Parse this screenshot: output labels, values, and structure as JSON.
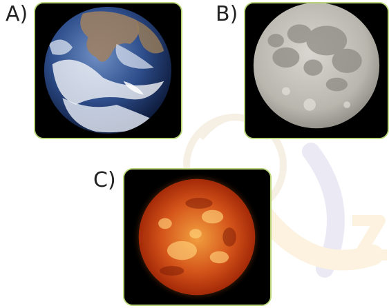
{
  "options": [
    {
      "label": "A)",
      "image": "earth-image"
    },
    {
      "label": "B)",
      "image": "moon-image"
    },
    {
      "label": "C)",
      "image": "sun-image"
    }
  ],
  "colors": {
    "card_border": "#b9d77a",
    "card_background": "#000000",
    "label_text": "#222222"
  }
}
